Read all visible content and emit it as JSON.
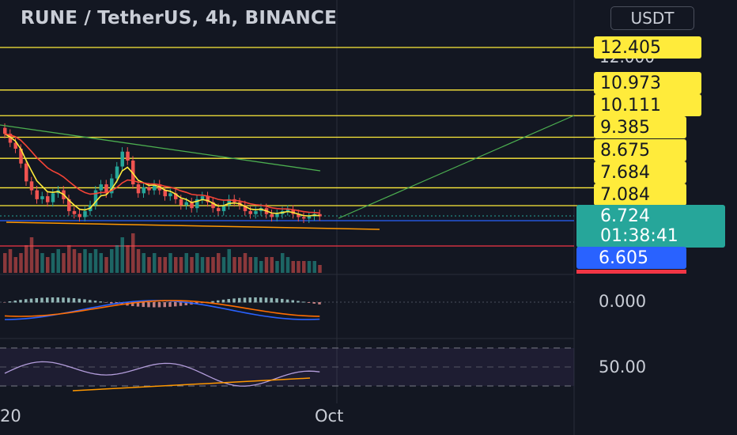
{
  "header": {
    "title": "RUNE / TetherUS, 4h, BINANCE",
    "currency": "USDT"
  },
  "price_axis": {
    "partial_label": "12.000",
    "levels": [
      "12.405",
      "10.973",
      "10.111",
      "9.385",
      "8.675",
      "7.684",
      "7.084"
    ],
    "current_price": "6.724",
    "countdown": "01:38:41",
    "blue_level": "6.605",
    "macd_label": "0.000",
    "rsi_label": "50.00"
  },
  "time_axis": {
    "left_label": "20",
    "month_label": "Oct"
  },
  "colors": {
    "background": "#131722",
    "level_line": "#ffeb3b",
    "up_candle": "#26a69a",
    "down_candle": "#ef5350",
    "blue_line": "#2962ff",
    "red_line": "#f23645",
    "ema_fast": "#ffeb3b",
    "ema_slow": "#f44336",
    "ma_long": "#4caf50",
    "trendline": "#ff9800",
    "macd_line": "#2962ff",
    "signal_line": "#ff6d00",
    "rsi_line": "#b39ddb"
  },
  "chart_data": {
    "type": "candlestick",
    "symbol": "RUNE / TetherUS",
    "interval": "4h",
    "exchange": "BINANCE",
    "currency": "USDT",
    "horizontal_levels": [
      12.405,
      10.973,
      10.111,
      9.385,
      8.675,
      7.684,
      7.084
    ],
    "current_price": 6.724,
    "support_level": 6.605,
    "closes": [
      9.5,
      9.2,
      9.0,
      8.5,
      7.9,
      7.6,
      7.3,
      7.4,
      7.2,
      7.5,
      7.6,
      7.3,
      6.9,
      6.8,
      6.7,
      6.9,
      7.1,
      7.6,
      7.8,
      7.5,
      8.0,
      8.4,
      8.9,
      8.6,
      7.8,
      7.5,
      7.7,
      7.6,
      7.8,
      7.6,
      7.4,
      7.5,
      7.3,
      7.1,
      7.2,
      7.0,
      7.3,
      7.4,
      7.2,
      7.0,
      6.9,
      7.1,
      7.3,
      7.2,
      7.1,
      6.9,
      6.8,
      6.9,
      7.0,
      6.8,
      6.7,
      6.8,
      6.9,
      6.95,
      6.8,
      6.7,
      6.65,
      6.72,
      6.8,
      6.724
    ],
    "volumes": [
      0.5,
      0.6,
      0.4,
      0.5,
      0.7,
      0.9,
      0.6,
      0.5,
      0.4,
      0.5,
      0.6,
      0.5,
      0.7,
      0.6,
      0.5,
      0.6,
      0.5,
      0.6,
      0.5,
      0.4,
      0.6,
      0.7,
      0.9,
      0.7,
      1.0,
      0.6,
      0.5,
      0.4,
      0.5,
      0.4,
      0.4,
      0.5,
      0.4,
      0.4,
      0.5,
      0.4,
      0.5,
      0.4,
      0.4,
      0.4,
      0.5,
      0.4,
      0.6,
      0.4,
      0.4,
      0.5,
      0.4,
      0.4,
      0.3,
      0.4,
      0.4,
      0.3,
      0.5,
      0.4,
      0.3,
      0.3,
      0.3,
      0.3,
      0.3,
      0.2
    ]
  }
}
